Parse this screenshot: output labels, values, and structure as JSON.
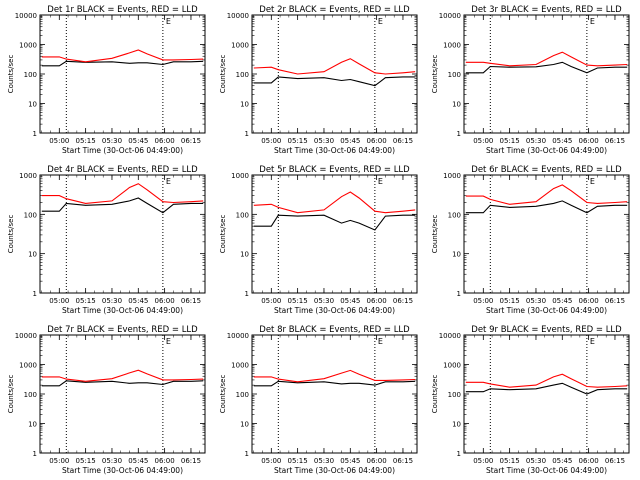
{
  "page": {
    "background": "#ffffff"
  },
  "chart_data": [
    {
      "type": "line",
      "title": "Det 1r BLACK = Events, RED = LLD",
      "xlabel": "Start Time (30-Oct-06 04:49:00)",
      "ylabel": "Counts/sec",
      "yscale": "log",
      "ylim": [
        1,
        10000
      ],
      "xticklabels": [
        "05:00",
        "05:15",
        "05:30",
        "05:45",
        "06:00",
        "06:15"
      ],
      "xlim": [
        "04:49",
        "06:23"
      ],
      "x_unit": "time",
      "vlines": [
        "05:04",
        "05:59"
      ],
      "annotation": "E",
      "x": [
        "04:50",
        "05:00",
        "05:04",
        "05:15",
        "05:30",
        "05:40",
        "05:45",
        "05:50",
        "05:59",
        "06:05",
        "06:15",
        "06:22"
      ],
      "series": [
        {
          "name": "Events",
          "color": "#000000",
          "values": [
            190,
            190,
            270,
            250,
            260,
            230,
            240,
            240,
            210,
            260,
            260,
            270
          ]
        },
        {
          "name": "LLD",
          "color": "#ff0000",
          "values": [
            380,
            380,
            320,
            260,
            340,
            520,
            650,
            480,
            300,
            300,
            310,
            320
          ]
        }
      ],
      "grid": false
    },
    {
      "type": "line",
      "title": "Det 2r BLACK = Events, RED = LLD",
      "xlabel": "Start Time (30-Oct-06 04:49:00)",
      "ylabel": "Counts/sec",
      "yscale": "log",
      "ylim": [
        1,
        10000
      ],
      "xticklabels": [
        "05:00",
        "05:15",
        "05:30",
        "05:45",
        "06:00",
        "06:15"
      ],
      "xlim": [
        "04:49",
        "06:23"
      ],
      "x_unit": "time",
      "vlines": [
        "05:04",
        "05:59"
      ],
      "annotation": "E",
      "x": [
        "04:50",
        "05:00",
        "05:04",
        "05:15",
        "05:30",
        "05:40",
        "05:45",
        "05:50",
        "05:59",
        "06:05",
        "06:15",
        "06:22"
      ],
      "series": [
        {
          "name": "Events",
          "color": "#000000",
          "values": [
            50,
            50,
            80,
            70,
            75,
            60,
            65,
            55,
            40,
            75,
            80,
            80
          ]
        },
        {
          "name": "LLD",
          "color": "#ff0000",
          "values": [
            160,
            170,
            140,
            100,
            120,
            250,
            330,
            220,
            110,
            100,
            110,
            120
          ]
        }
      ],
      "grid": false
    },
    {
      "type": "line",
      "title": "Det 3r BLACK = Events, RED = LLD",
      "xlabel": "Start Time (30-Oct-06 04:49:00)",
      "ylabel": "Counts/sec",
      "yscale": "log",
      "ylim": [
        1,
        10000
      ],
      "xticklabels": [
        "05:00",
        "05:15",
        "05:30",
        "05:45",
        "06:00",
        "06:15"
      ],
      "xlim": [
        "04:49",
        "06:23"
      ],
      "x_unit": "time",
      "vlines": [
        "05:04",
        "05:59"
      ],
      "annotation": "E",
      "x": [
        "04:50",
        "05:00",
        "05:04",
        "05:15",
        "05:30",
        "05:40",
        "05:45",
        "05:50",
        "05:59",
        "06:05",
        "06:15",
        "06:22"
      ],
      "series": [
        {
          "name": "Events",
          "color": "#000000",
          "values": [
            110,
            110,
            180,
            170,
            175,
            210,
            250,
            180,
            110,
            160,
            170,
            170
          ]
        },
        {
          "name": "LLD",
          "color": "#ff0000",
          "values": [
            250,
            250,
            230,
            190,
            210,
            420,
            550,
            380,
            200,
            190,
            200,
            210
          ]
        }
      ],
      "grid": false
    },
    {
      "type": "line",
      "title": "Det 4r BLACK = Events, RED = LLD",
      "xlabel": "Start Time (30-Oct-06 04:49:00)",
      "ylabel": "Counts/sec",
      "yscale": "log",
      "ylim": [
        1,
        1000
      ],
      "xticklabels": [
        "05:00",
        "05:15",
        "05:30",
        "05:45",
        "06:00",
        "06:15"
      ],
      "xlim": [
        "04:49",
        "06:23"
      ],
      "x_unit": "time",
      "vlines": [
        "05:04",
        "05:59"
      ],
      "annotation": "E",
      "x": [
        "04:50",
        "05:00",
        "05:04",
        "05:15",
        "05:30",
        "05:40",
        "05:45",
        "05:50",
        "05:59",
        "06:05",
        "06:15",
        "06:22"
      ],
      "series": [
        {
          "name": "Events",
          "color": "#000000",
          "values": [
            120,
            120,
            190,
            170,
            180,
            220,
            260,
            190,
            110,
            180,
            190,
            190
          ]
        },
        {
          "name": "LLD",
          "color": "#ff0000",
          "values": [
            300,
            300,
            250,
            190,
            220,
            480,
            600,
            420,
            210,
            200,
            210,
            220
          ]
        }
      ],
      "grid": false
    },
    {
      "type": "line",
      "title": "Det 5r BLACK = Events, RED = LLD",
      "xlabel": "Start Time (30-Oct-06 04:49:00)",
      "ylabel": "Counts/sec",
      "yscale": "log",
      "ylim": [
        1,
        1000
      ],
      "xticklabels": [
        "05:00",
        "05:15",
        "05:30",
        "05:45",
        "06:00",
        "06:15"
      ],
      "xlim": [
        "04:49",
        "06:23"
      ],
      "x_unit": "time",
      "vlines": [
        "05:04",
        "05:59"
      ],
      "annotation": "E",
      "x": [
        "04:50",
        "05:00",
        "05:04",
        "05:15",
        "05:30",
        "05:40",
        "05:45",
        "05:50",
        "05:59",
        "06:05",
        "06:15",
        "06:22"
      ],
      "series": [
        {
          "name": "Events",
          "color": "#000000",
          "values": [
            50,
            50,
            95,
            90,
            95,
            60,
            70,
            60,
            40,
            90,
            95,
            95
          ]
        },
        {
          "name": "LLD",
          "color": "#ff0000",
          "values": [
            170,
            180,
            150,
            110,
            130,
            280,
            370,
            260,
            120,
            110,
            120,
            130
          ]
        }
      ],
      "grid": false
    },
    {
      "type": "line",
      "title": "Det 6r BLACK = Events, RED = LLD",
      "xlabel": "Start Time (30-Oct-06 04:49:00)",
      "ylabel": "Counts/sec",
      "yscale": "log",
      "ylim": [
        1,
        1000
      ],
      "xticklabels": [
        "05:00",
        "05:15",
        "05:30",
        "05:45",
        "06:00",
        "06:15"
      ],
      "xlim": [
        "04:49",
        "06:23"
      ],
      "x_unit": "time",
      "vlines": [
        "05:04",
        "05:59"
      ],
      "annotation": "E",
      "x": [
        "04:50",
        "05:00",
        "05:04",
        "05:15",
        "05:30",
        "05:40",
        "05:45",
        "05:50",
        "05:59",
        "06:05",
        "06:15",
        "06:22"
      ],
      "series": [
        {
          "name": "Events",
          "color": "#000000",
          "values": [
            110,
            110,
            170,
            150,
            160,
            190,
            220,
            170,
            110,
            160,
            170,
            170
          ]
        },
        {
          "name": "LLD",
          "color": "#ff0000",
          "values": [
            290,
            290,
            240,
            180,
            210,
            450,
            560,
            400,
            200,
            190,
            200,
            210
          ]
        }
      ],
      "grid": false
    },
    {
      "type": "line",
      "title": "Det 7r BLACK = Events, RED = LLD",
      "xlabel": "Start Time (30-Oct-06 04:49:00)",
      "ylabel": "Counts/sec",
      "yscale": "log",
      "ylim": [
        1,
        10000
      ],
      "xticklabels": [
        "05:00",
        "05:15",
        "05:30",
        "05:45",
        "06:00",
        "06:15"
      ],
      "xlim": [
        "04:49",
        "06:23"
      ],
      "x_unit": "time",
      "vlines": [
        "05:04",
        "05:59"
      ],
      "annotation": "E",
      "x": [
        "04:50",
        "05:00",
        "05:04",
        "05:15",
        "05:30",
        "05:40",
        "05:45",
        "05:50",
        "05:59",
        "06:05",
        "06:15",
        "06:22"
      ],
      "series": [
        {
          "name": "Events",
          "color": "#000000",
          "values": [
            190,
            190,
            280,
            250,
            270,
            230,
            240,
            240,
            210,
            270,
            270,
            280
          ]
        },
        {
          "name": "LLD",
          "color": "#ff0000",
          "values": [
            380,
            380,
            320,
            270,
            330,
            520,
            640,
            480,
            300,
            300,
            310,
            320
          ]
        }
      ],
      "grid": false
    },
    {
      "type": "line",
      "title": "Det 8r BLACK = Events, RED = LLD",
      "xlabel": "Start Time (30-Oct-06 04:49:00)",
      "ylabel": "Counts/sec",
      "yscale": "log",
      "ylim": [
        1,
        10000
      ],
      "xticklabels": [
        "05:00",
        "05:15",
        "05:30",
        "05:45",
        "06:00",
        "06:15"
      ],
      "xlim": [
        "04:49",
        "06:23"
      ],
      "x_unit": "time",
      "vlines": [
        "05:04",
        "05:59"
      ],
      "annotation": "E",
      "x": [
        "04:50",
        "05:00",
        "05:04",
        "05:15",
        "05:30",
        "05:40",
        "05:45",
        "05:50",
        "05:59",
        "06:05",
        "06:15",
        "06:22"
      ],
      "series": [
        {
          "name": "Events",
          "color": "#000000",
          "values": [
            190,
            190,
            270,
            240,
            260,
            220,
            230,
            230,
            200,
            260,
            260,
            270
          ]
        },
        {
          "name": "LLD",
          "color": "#ff0000",
          "values": [
            380,
            380,
            320,
            260,
            330,
            510,
            630,
            470,
            290,
            290,
            300,
            310
          ]
        }
      ],
      "grid": false
    },
    {
      "type": "line",
      "title": "Det 9r BLACK = Events, RED = LLD",
      "xlabel": "Start Time (30-Oct-06 04:49:00)",
      "ylabel": "Counts/sec",
      "yscale": "log",
      "ylim": [
        1,
        10000
      ],
      "xticklabels": [
        "05:00",
        "05:15",
        "05:30",
        "05:45",
        "06:00",
        "06:15"
      ],
      "xlim": [
        "04:49",
        "06:23"
      ],
      "x_unit": "time",
      "vlines": [
        "05:04",
        "05:59"
      ],
      "annotation": "E",
      "x": [
        "04:50",
        "05:00",
        "05:04",
        "05:15",
        "05:30",
        "05:40",
        "05:45",
        "05:50",
        "05:59",
        "06:05",
        "06:15",
        "06:22"
      ],
      "series": [
        {
          "name": "Events",
          "color": "#000000",
          "values": [
            120,
            120,
            150,
            140,
            150,
            200,
            230,
            170,
            100,
            140,
            150,
            150
          ]
        },
        {
          "name": "LLD",
          "color": "#ff0000",
          "values": [
            250,
            250,
            220,
            170,
            200,
            380,
            470,
            330,
            180,
            170,
            180,
            190
          ]
        }
      ],
      "grid": false
    }
  ]
}
